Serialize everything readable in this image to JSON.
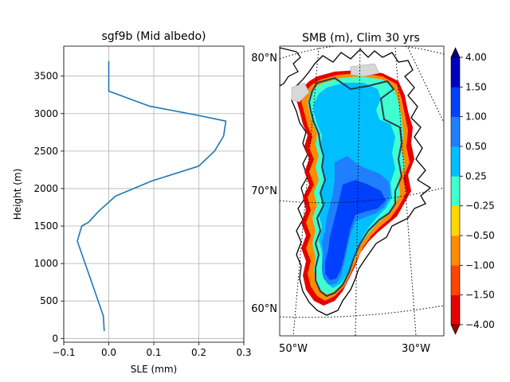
{
  "chart_data": [
    {
      "type": "line",
      "title": "sgf9b (Mid albedo)",
      "xlabel": "SLE (mm)",
      "ylabel": "Height (m)",
      "xlim": [
        -0.1,
        0.3
      ],
      "ylim": [
        -50,
        3900
      ],
      "xticks": [
        -0.1,
        0.0,
        0.1,
        0.2,
        0.3
      ],
      "xtick_labels": [
        "−0.1",
        "0.0",
        "0.1",
        "0.2",
        "0.3"
      ],
      "yticks": [
        0,
        500,
        1000,
        1500,
        2000,
        2500,
        3000,
        3500
      ],
      "ytick_labels": [
        "0",
        "500",
        "1000",
        "1500",
        "2000",
        "2500",
        "3000",
        "3500"
      ],
      "grid": true,
      "series": [
        {
          "color": "#1f77b4",
          "x": [
            -0.01,
            -0.012,
            -0.035,
            -0.07,
            -0.06,
            -0.045,
            -0.022,
            0.015,
            0.095,
            0.2,
            0.235,
            0.255,
            0.26,
            0.195,
            0.09,
            0.0,
            0.0,
            0.0
          ],
          "y": [
            100,
            300,
            700,
            1300,
            1500,
            1550,
            1700,
            1900,
            2100,
            2300,
            2500,
            2700,
            2900,
            2980,
            3100,
            3300,
            3500,
            3700
          ]
        }
      ]
    },
    {
      "type": "heatmap",
      "title": "SMB (m), Clim 30 yrs",
      "lat_labels": [
        "80°N",
        "70°N",
        "60°N"
      ],
      "lon_labels": [
        "50°W",
        "30°W"
      ],
      "colorbar": {
        "boundaries": [
          -4.0,
          -1.5,
          -1.0,
          -0.5,
          -0.25,
          0.25,
          0.5,
          1.0,
          1.5,
          4.0
        ],
        "tick_labels": [
          "−4.00",
          "−1.50",
          "−1.00",
          "−0.50",
          "−0.25",
          "0.25",
          "0.50",
          "1.00",
          "1.50",
          "4.00"
        ],
        "colors": [
          "#e60000",
          "#ff4500",
          "#ff8c00",
          "#ffd700",
          "#40ffd0",
          "#00bfff",
          "#1e7fff",
          "#0040ff",
          "#0000c0"
        ],
        "under_color": "#a00000",
        "over_color": "#000080"
      },
      "grid": true
    }
  ]
}
